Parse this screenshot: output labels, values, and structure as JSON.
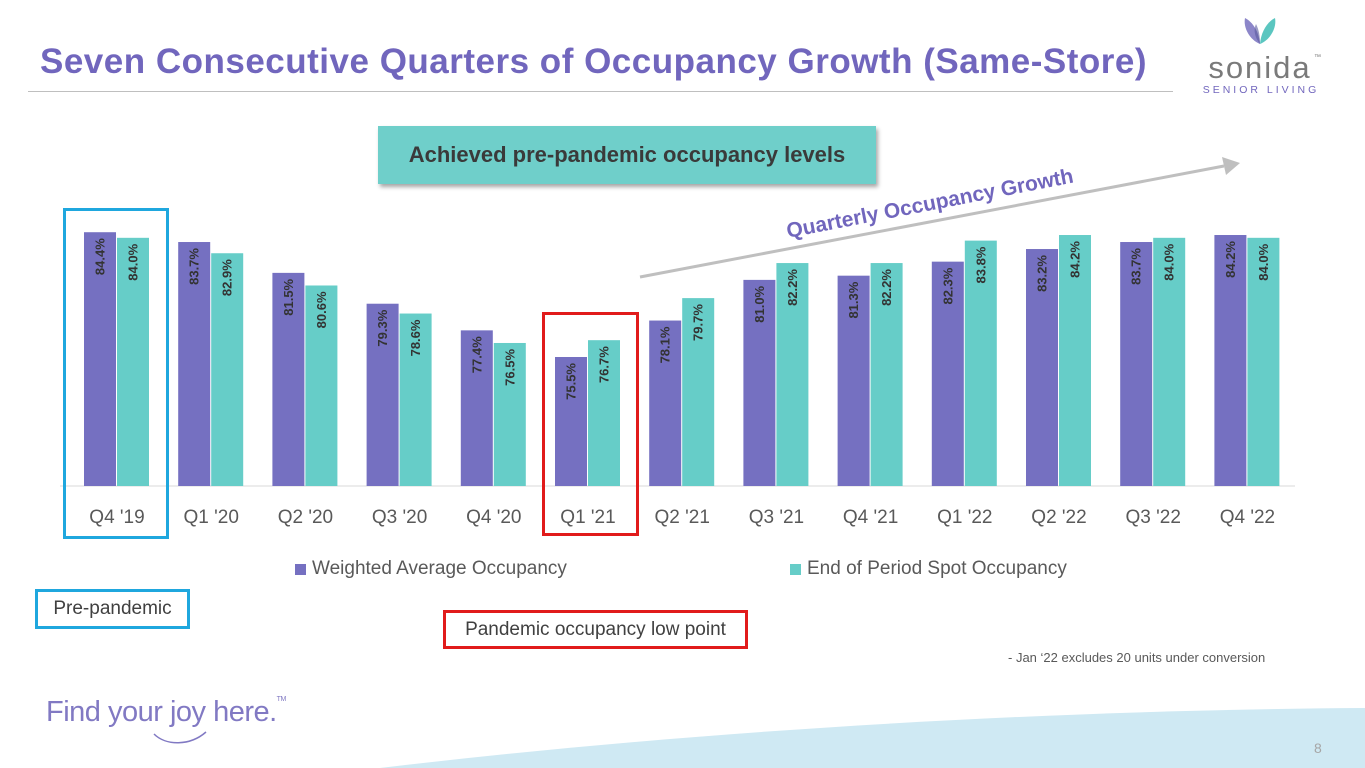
{
  "header": {
    "title": "Seven Consecutive Quarters of Occupancy Growth (Same-Store)"
  },
  "logo": {
    "wordmark": "sonida",
    "trademark": "™",
    "subtitle": "SENIOR LIVING"
  },
  "banner": {
    "text": "Achieved pre-pandemic occupancy levels"
  },
  "trend_label": "Quarterly Occupancy Growth",
  "callouts": {
    "pre_pandemic": "Pre-pandemic",
    "low_point": "Pandemic occupancy low point"
  },
  "footnote": "- Jan ‘22 excludes 20 units under conversion",
  "footer": {
    "tagline": "Find your joy here.",
    "tagline_tm": "TM",
    "page_number": "8"
  },
  "colors": {
    "weighted": "#7570c1",
    "spot": "#66cdc8",
    "title": "#7166bd",
    "callout_blue": "#1fa7de",
    "callout_red": "#e11b1b"
  },
  "chart_data": {
    "type": "bar",
    "categories": [
      "Q4 '19",
      "Q1 '20",
      "Q2 '20",
      "Q3 '20",
      "Q4 '20",
      "Q1 '21",
      "Q2 '21",
      "Q3 '21",
      "Q4 '21",
      "Q1 '22",
      "Q2 '22",
      "Q3 '22",
      "Q4 '22"
    ],
    "series": [
      {
        "name": "Weighted Average Occupancy",
        "values": [
          84.4,
          83.7,
          81.5,
          79.3,
          77.4,
          75.5,
          78.1,
          81.0,
          81.3,
          82.3,
          83.2,
          83.7,
          84.2
        ],
        "labels": [
          "84.4%",
          "83.7%",
          "81.5%",
          "79.3%",
          "77.4%",
          "75.5%",
          "78.1%",
          "81.0%",
          "81.3%",
          "82.3%",
          "83.2%",
          "83.7%",
          "84.2%"
        ]
      },
      {
        "name": "End of Period Spot Occupancy",
        "values": [
          84.0,
          82.9,
          80.6,
          78.6,
          76.5,
          76.7,
          79.7,
          82.2,
          82.2,
          83.8,
          84.2,
          84.0,
          84.0
        ],
        "labels": [
          "84.0%",
          "82.9%",
          "80.6%",
          "78.6%",
          "76.5%",
          "76.7%",
          "79.7%",
          "82.2%",
          "82.2%",
          "83.8%",
          "84.2%",
          "84.0%",
          "84.0%"
        ]
      }
    ],
    "title": "",
    "xlabel": "",
    "ylabel": "",
    "ylim": [
      66.3,
      84.7
    ],
    "legend": "bottom",
    "grid": false
  }
}
